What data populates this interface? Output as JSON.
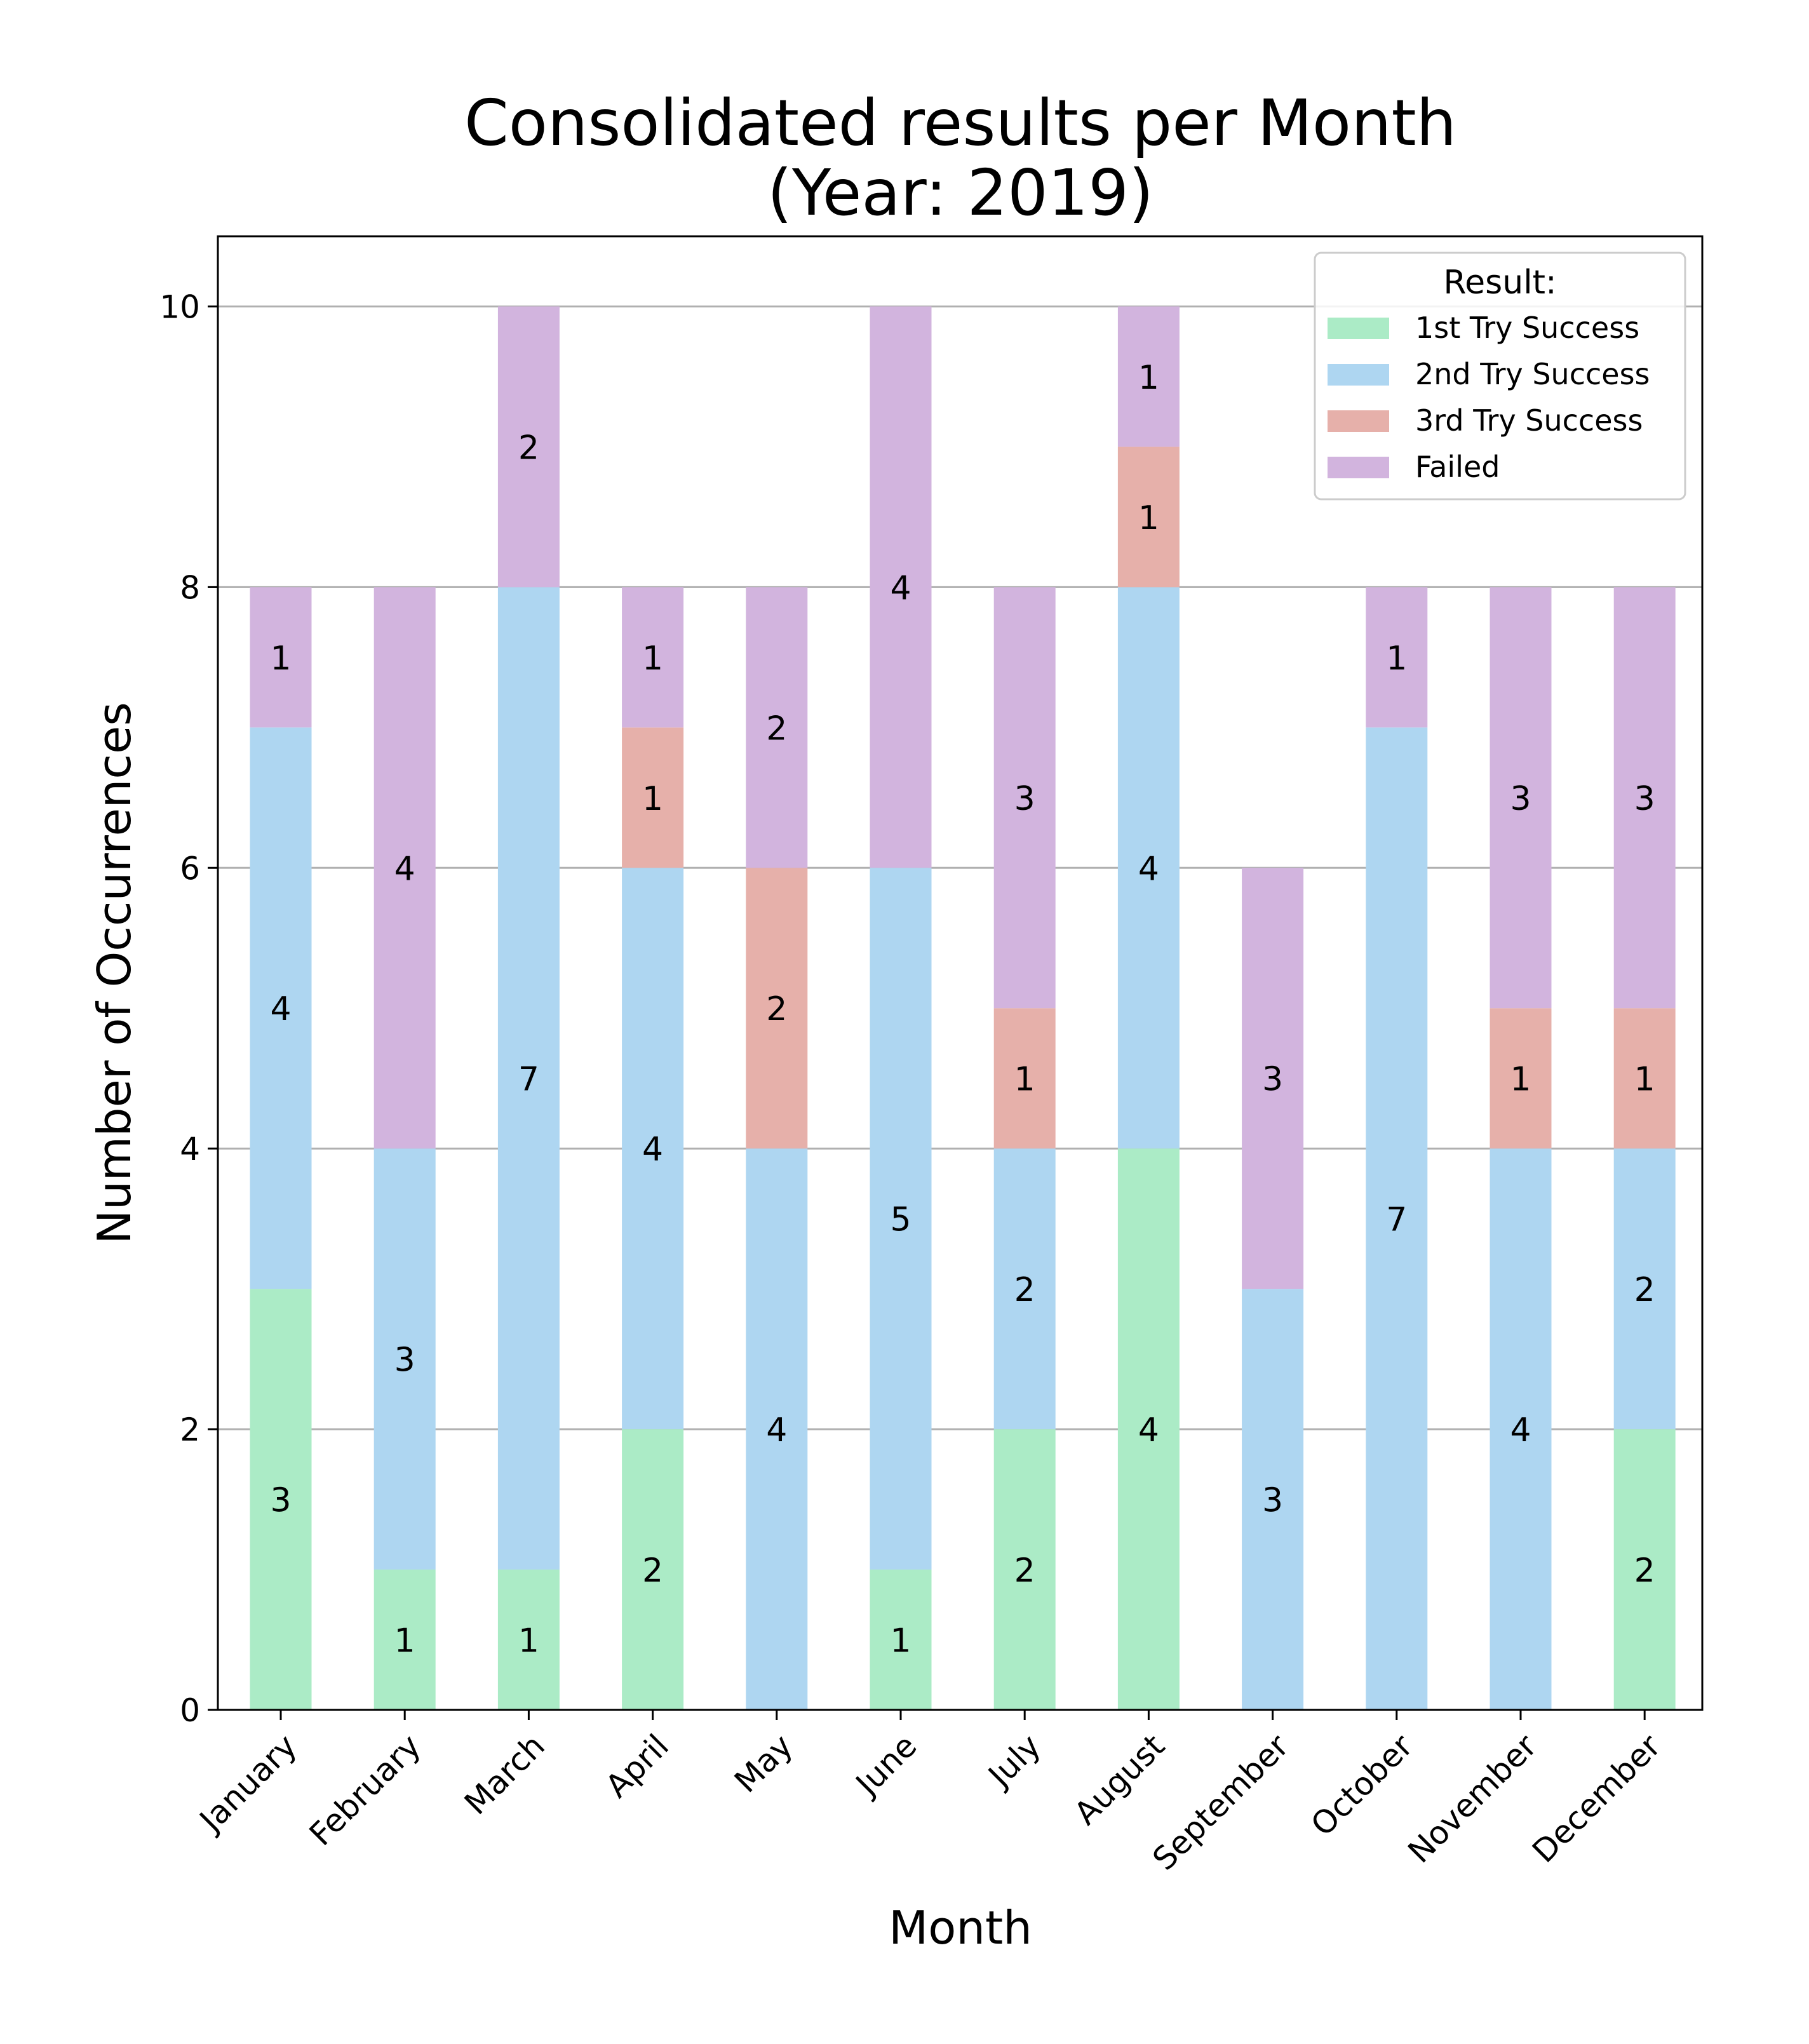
{
  "chart_data": {
    "type": "bar",
    "stacked": true,
    "title_lines": [
      "Consolidated results per Month",
      "(Year: 2019)"
    ],
    "xlabel": "Month",
    "ylabel": "Number of Occurrences",
    "ylim": [
      0,
      10.5
    ],
    "yticks": [
      0,
      2,
      4,
      6,
      8,
      10
    ],
    "grid": "y",
    "legend": {
      "title": "Result:",
      "placement": "top-right"
    },
    "categories": [
      "January",
      "February",
      "March",
      "April",
      "May",
      "June",
      "July",
      "August",
      "September",
      "October",
      "November",
      "December"
    ],
    "series": [
      {
        "name": "1st Try Success",
        "color": "#abebc6",
        "values": [
          3,
          1,
          1,
          2,
          0,
          1,
          2,
          4,
          0,
          0,
          0,
          2
        ]
      },
      {
        "name": "2nd Try Success",
        "color": "#aed6f1",
        "values": [
          4,
          3,
          7,
          4,
          4,
          5,
          2,
          4,
          3,
          7,
          4,
          2
        ]
      },
      {
        "name": "3rd Try Success",
        "color": "#e6b0aa",
        "values": [
          0,
          0,
          0,
          1,
          2,
          0,
          1,
          1,
          0,
          0,
          1,
          1
        ]
      },
      {
        "name": "Failed",
        "color": "#d2b4de",
        "values": [
          1,
          4,
          2,
          1,
          2,
          4,
          3,
          1,
          3,
          1,
          3,
          3
        ]
      }
    ]
  }
}
